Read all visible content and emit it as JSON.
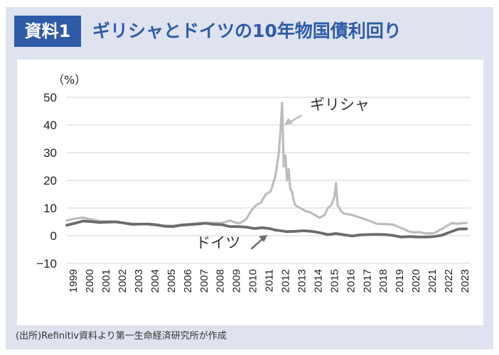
{
  "header": {
    "badge": "資料1",
    "title": "ギリシャとドイツの10年物国債利回り"
  },
  "source_note": "(出所)Refinitiv資料より第一生命経済研究所が作成",
  "colors": {
    "background": "#dfe3ef",
    "accent": "#2e5ba8",
    "greece": "#bdbdbd",
    "germany": "#6b6b6b"
  },
  "chart_data": {
    "type": "line",
    "title": "ギリシャとドイツの10年物国債利回り",
    "ylabel": "（%）",
    "xlabel": "",
    "ylim": [
      -10,
      50
    ],
    "yticks": [
      "50",
      "40",
      "30",
      "20",
      "10",
      "0",
      "−10"
    ],
    "grid": true,
    "x_categories": [
      "1999",
      "2000",
      "2001",
      "2002",
      "2003",
      "2004",
      "2005",
      "2006",
      "2007",
      "2008",
      "2009",
      "2010",
      "2011",
      "2012",
      "2013",
      "2014",
      "2015",
      "2016",
      "2017",
      "2018",
      "2019",
      "2020",
      "2021",
      "2022",
      "2023"
    ],
    "annotations": [
      {
        "text": "ギリシャ",
        "series": "greece"
      },
      {
        "text": "ドイツ",
        "series": "germany"
      }
    ],
    "series": [
      {
        "name": "greece",
        "label": "ギリシャ",
        "x": [
          1999.0,
          1999.5,
          2000.0,
          2000.5,
          2001.0,
          2001.5,
          2002.0,
          2002.5,
          2003.0,
          2003.5,
          2004.0,
          2004.5,
          2005.0,
          2005.5,
          2006.0,
          2006.5,
          2007.0,
          2007.5,
          2008.0,
          2008.5,
          2009.0,
          2009.3,
          2009.6,
          2010.0,
          2010.3,
          2010.6,
          2010.9,
          2011.2,
          2011.5,
          2011.8,
          2012.0,
          2012.1,
          2012.2,
          2012.3,
          2012.4,
          2012.5,
          2012.6,
          2012.7,
          2012.8,
          2012.9,
          2013.0,
          2013.3,
          2013.6,
          2013.9,
          2014.2,
          2014.5,
          2014.8,
          2015.0,
          2015.2,
          2015.4,
          2015.5,
          2015.6,
          2015.8,
          2016.0,
          2016.5,
          2017.0,
          2017.5,
          2018.0,
          2018.5,
          2019.0,
          2019.5,
          2020.0,
          2020.3,
          2020.6,
          2021.0,
          2021.5,
          2022.0,
          2022.3,
          2022.6,
          2022.9,
          2023.2,
          2023.5
        ],
        "values": [
          5.5,
          6.2,
          6.5,
          5.9,
          5.3,
          5.2,
          5.1,
          4.6,
          4.3,
          4.2,
          4.3,
          4.1,
          3.6,
          3.6,
          4.0,
          4.2,
          4.5,
          4.6,
          4.7,
          4.6,
          5.5,
          4.8,
          4.5,
          6.0,
          9.0,
          11.0,
          12.0,
          15.0,
          16.0,
          22.0,
          30.0,
          38.0,
          48.0,
          25.0,
          29.0,
          20.0,
          24.0,
          17.0,
          16.0,
          13.0,
          11.0,
          10.0,
          9.0,
          8.5,
          7.5,
          6.5,
          7.5,
          10.0,
          11.0,
          14.0,
          19.0,
          11.0,
          9.0,
          8.0,
          7.5,
          6.5,
          5.5,
          4.3,
          4.2,
          4.0,
          2.8,
          1.5,
          1.2,
          1.3,
          0.8,
          0.9,
          2.5,
          3.5,
          4.6,
          4.3,
          4.5,
          4.6
        ]
      },
      {
        "name": "germany",
        "label": "ドイツ",
        "x": [
          1999.0,
          1999.5,
          2000.0,
          2000.5,
          2001.0,
          2001.5,
          2002.0,
          2002.5,
          2003.0,
          2003.5,
          2004.0,
          2004.5,
          2005.0,
          2005.5,
          2006.0,
          2006.5,
          2007.0,
          2007.5,
          2008.0,
          2008.5,
          2009.0,
          2009.5,
          2010.0,
          2010.5,
          2011.0,
          2011.5,
          2011.8,
          2012.0,
          2012.5,
          2013.0,
          2013.5,
          2014.0,
          2014.5,
          2015.0,
          2015.5,
          2016.0,
          2016.5,
          2017.0,
          2017.5,
          2018.0,
          2018.5,
          2019.0,
          2019.5,
          2020.0,
          2020.5,
          2021.0,
          2021.5,
          2022.0,
          2022.5,
          2023.0,
          2023.5
        ],
        "values": [
          3.8,
          4.5,
          5.3,
          5.1,
          4.8,
          4.9,
          5.0,
          4.6,
          4.1,
          4.2,
          4.2,
          3.9,
          3.4,
          3.3,
          3.8,
          4.0,
          4.2,
          4.5,
          4.1,
          4.0,
          3.3,
          3.3,
          3.1,
          2.6,
          2.9,
          2.5,
          2.0,
          1.9,
          1.5,
          1.6,
          1.8,
          1.6,
          1.1,
          0.4,
          0.8,
          0.3,
          -0.1,
          0.3,
          0.4,
          0.5,
          0.4,
          0.1,
          -0.5,
          -0.3,
          -0.5,
          -0.5,
          -0.3,
          0.2,
          1.3,
          2.4,
          2.5
        ]
      }
    ]
  }
}
